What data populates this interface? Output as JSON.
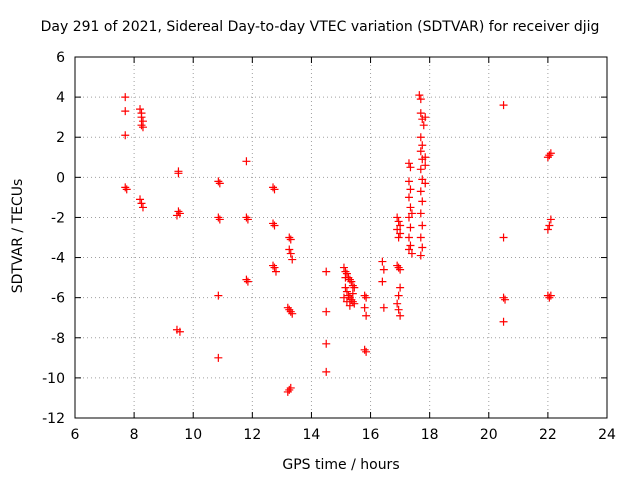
{
  "chart_data": {
    "type": "scatter",
    "title": "Day 291 of 2021, Sidereal Day-to-day VTEC variation (SDTVAR) for receiver djig",
    "xlabel": "GPS time / hours",
    "ylabel": "SDTVAR / TECUs",
    "xlim": [
      6,
      24
    ],
    "ylim": [
      -12,
      6
    ],
    "xticks": [
      6,
      8,
      10,
      12,
      14,
      16,
      18,
      20,
      22,
      24
    ],
    "yticks": [
      6,
      4,
      2,
      0,
      -2,
      -4,
      -6,
      -8,
      -10,
      -12
    ],
    "grid": true,
    "marker": "+",
    "series": [
      {
        "name": "SDTVAR",
        "color": "#ff0000",
        "points": [
          [
            7.7,
            4.0
          ],
          [
            7.7,
            3.3
          ],
          [
            7.7,
            2.1
          ],
          [
            7.7,
            -0.5
          ],
          [
            7.75,
            -0.6
          ],
          [
            8.2,
            3.4
          ],
          [
            8.25,
            3.2
          ],
          [
            8.25,
            3.0
          ],
          [
            8.3,
            2.8
          ],
          [
            8.25,
            2.6
          ],
          [
            8.3,
            2.5
          ],
          [
            8.2,
            -1.1
          ],
          [
            8.25,
            -1.3
          ],
          [
            8.3,
            -1.5
          ],
          [
            9.5,
            0.3
          ],
          [
            9.5,
            0.2
          ],
          [
            9.5,
            -1.7
          ],
          [
            9.55,
            -1.8
          ],
          [
            9.45,
            -1.9
          ],
          [
            9.45,
            -7.6
          ],
          [
            9.55,
            -7.7
          ],
          [
            10.85,
            -0.2
          ],
          [
            10.9,
            -0.3
          ],
          [
            10.85,
            -2.0
          ],
          [
            10.9,
            -2.1
          ],
          [
            10.85,
            -5.9
          ],
          [
            10.85,
            -9.0
          ],
          [
            11.8,
            0.8
          ],
          [
            11.8,
            -2.0
          ],
          [
            11.85,
            -2.1
          ],
          [
            11.8,
            -5.1
          ],
          [
            11.85,
            -5.2
          ],
          [
            12.7,
            -0.5
          ],
          [
            12.75,
            -0.6
          ],
          [
            12.7,
            -2.3
          ],
          [
            12.75,
            -2.4
          ],
          [
            12.7,
            -4.4
          ],
          [
            12.75,
            -4.5
          ],
          [
            12.8,
            -4.7
          ],
          [
            13.25,
            -3.0
          ],
          [
            13.3,
            -3.1
          ],
          [
            13.25,
            -3.6
          ],
          [
            13.3,
            -3.8
          ],
          [
            13.35,
            -4.1
          ],
          [
            13.2,
            -6.5
          ],
          [
            13.25,
            -6.6
          ],
          [
            13.3,
            -6.7
          ],
          [
            13.35,
            -6.8
          ],
          [
            13.2,
            -10.7
          ],
          [
            13.25,
            -10.6
          ],
          [
            13.3,
            -10.5
          ],
          [
            14.5,
            -4.7
          ],
          [
            14.5,
            -6.7
          ],
          [
            14.5,
            -8.3
          ],
          [
            14.5,
            -9.7
          ],
          [
            15.1,
            -4.5
          ],
          [
            15.15,
            -4.7
          ],
          [
            15.2,
            -4.8
          ],
          [
            15.25,
            -5.0
          ],
          [
            15.3,
            -5.1
          ],
          [
            15.35,
            -5.2
          ],
          [
            15.4,
            -5.4
          ],
          [
            15.45,
            -5.5
          ],
          [
            15.15,
            -5.5
          ],
          [
            15.2,
            -5.7
          ],
          [
            15.25,
            -5.9
          ],
          [
            15.3,
            -6.0
          ],
          [
            15.35,
            -6.1
          ],
          [
            15.4,
            -6.2
          ],
          [
            15.45,
            -6.3
          ],
          [
            15.1,
            -6.0
          ],
          [
            15.2,
            -6.2
          ],
          [
            15.3,
            -6.4
          ],
          [
            15.4,
            -5.8
          ],
          [
            15.15,
            -5.0
          ],
          [
            15.8,
            -5.9
          ],
          [
            15.85,
            -6.0
          ],
          [
            15.8,
            -6.5
          ],
          [
            15.85,
            -6.9
          ],
          [
            15.8,
            -8.6
          ],
          [
            15.85,
            -8.7
          ],
          [
            16.4,
            -4.2
          ],
          [
            16.45,
            -4.6
          ],
          [
            16.4,
            -5.2
          ],
          [
            16.45,
            -6.5
          ],
          [
            16.9,
            -2.0
          ],
          [
            16.95,
            -2.2
          ],
          [
            17.0,
            -2.4
          ],
          [
            16.9,
            -2.6
          ],
          [
            17.0,
            -2.8
          ],
          [
            16.95,
            -3.0
          ],
          [
            16.9,
            -4.4
          ],
          [
            16.95,
            -4.5
          ],
          [
            17.0,
            -4.6
          ],
          [
            17.0,
            -5.5
          ],
          [
            16.95,
            -5.9
          ],
          [
            16.9,
            -6.3
          ],
          [
            16.95,
            -6.6
          ],
          [
            17.0,
            -6.9
          ],
          [
            17.3,
            0.7
          ],
          [
            17.35,
            0.5
          ],
          [
            17.3,
            -0.2
          ],
          [
            17.35,
            -0.6
          ],
          [
            17.3,
            -1.0
          ],
          [
            17.35,
            -1.5
          ],
          [
            17.3,
            -2.0
          ],
          [
            17.35,
            -2.5
          ],
          [
            17.3,
            -3.0
          ],
          [
            17.35,
            -3.4
          ],
          [
            17.3,
            -3.6
          ],
          [
            17.4,
            -3.8
          ],
          [
            17.4,
            -1.8
          ],
          [
            17.65,
            4.1
          ],
          [
            17.7,
            3.9
          ],
          [
            17.7,
            3.2
          ],
          [
            17.75,
            2.9
          ],
          [
            17.7,
            2.0
          ],
          [
            17.75,
            1.6
          ],
          [
            17.7,
            1.3
          ],
          [
            17.75,
            0.9
          ],
          [
            17.7,
            0.4
          ],
          [
            17.75,
            -0.1
          ],
          [
            17.7,
            -0.7
          ],
          [
            17.75,
            -1.2
          ],
          [
            17.7,
            -1.8
          ],
          [
            17.75,
            -2.4
          ],
          [
            17.7,
            -3.0
          ],
          [
            17.75,
            -3.5
          ],
          [
            17.7,
            -3.9
          ],
          [
            17.85,
            3.0
          ],
          [
            17.8,
            2.6
          ],
          [
            17.85,
            1.0
          ],
          [
            17.85,
            0.6
          ],
          [
            17.85,
            -0.3
          ],
          [
            20.5,
            3.6
          ],
          [
            20.5,
            -3.0
          ],
          [
            20.5,
            -6.0
          ],
          [
            20.55,
            -6.1
          ],
          [
            20.5,
            -7.2
          ],
          [
            22.0,
            1.0
          ],
          [
            22.05,
            1.1
          ],
          [
            22.1,
            1.2
          ],
          [
            22.0,
            -2.6
          ],
          [
            22.05,
            -2.4
          ],
          [
            22.1,
            -2.1
          ],
          [
            22.0,
            -5.9
          ],
          [
            22.05,
            -6.0
          ],
          [
            22.1,
            -5.9
          ]
        ]
      }
    ]
  }
}
